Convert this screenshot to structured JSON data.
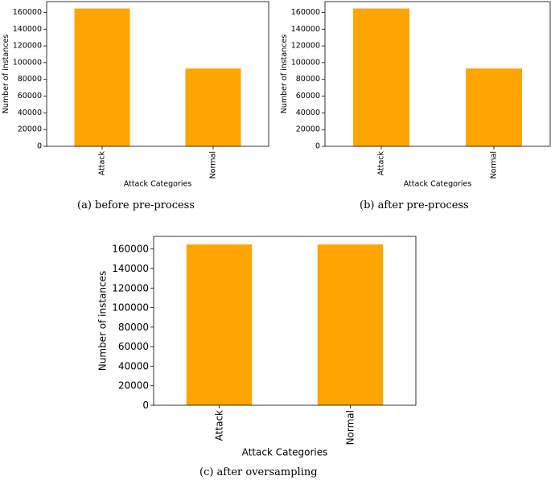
{
  "colors": {
    "bar": "#ffa500",
    "axis": "#000000"
  },
  "chart_data": [
    {
      "type": "bar",
      "categories": [
        "Attack",
        "Normal"
      ],
      "values": [
        164673,
        93000
      ],
      "xlabel": "Attack Categories",
      "ylabel": "Number of instances",
      "ylim": [
        0,
        172900
      ],
      "yticks": [
        0,
        20000,
        40000,
        60000,
        80000,
        100000,
        120000,
        140000,
        160000
      ],
      "ytick_labels": [
        "0",
        "20000",
        "40000",
        "60000",
        "80000",
        "100000",
        "120000",
        "140000",
        "160000"
      ],
      "grid": false,
      "caption": "(a)  before pre-process"
    },
    {
      "type": "bar",
      "categories": [
        "Attack",
        "Normal"
      ],
      "values": [
        164673,
        93000
      ],
      "xlabel": "Attack Categories",
      "ylabel": "Number of instances",
      "ylim": [
        0,
        172900
      ],
      "yticks": [
        0,
        20000,
        40000,
        60000,
        80000,
        100000,
        120000,
        140000,
        160000
      ],
      "ytick_labels": [
        "0",
        "20000",
        "40000",
        "60000",
        "80000",
        "100000",
        "120000",
        "140000",
        "160000"
      ],
      "grid": false,
      "caption": "(b)  after pre-process"
    },
    {
      "type": "bar",
      "categories": [
        "Attack",
        "Normal"
      ],
      "values": [
        164673,
        164673
      ],
      "xlabel": "Attack Categories",
      "ylabel": "Number of instances",
      "ylim": [
        0,
        172900
      ],
      "yticks": [
        0,
        20000,
        40000,
        60000,
        80000,
        100000,
        120000,
        140000,
        160000
      ],
      "ytick_labels": [
        "0",
        "20000",
        "40000",
        "60000",
        "80000",
        "100000",
        "120000",
        "140000",
        "160000"
      ],
      "grid": false,
      "caption": "(c)  after oversampling"
    }
  ]
}
